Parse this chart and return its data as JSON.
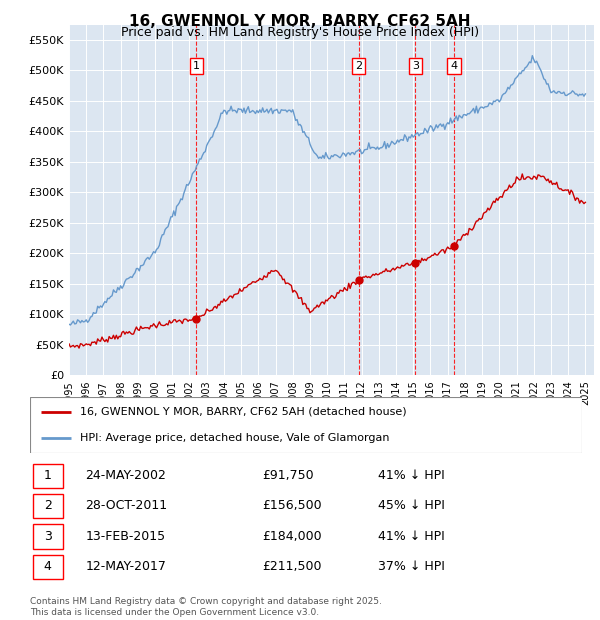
{
  "title": "16, GWENNOL Y MOR, BARRY, CF62 5AH",
  "subtitle": "Price paid vs. HM Land Registry's House Price Index (HPI)",
  "ylabel_ticks": [
    "£0",
    "£50K",
    "£100K",
    "£150K",
    "£200K",
    "£250K",
    "£300K",
    "£350K",
    "£400K",
    "£450K",
    "£500K",
    "£550K"
  ],
  "ylim": [
    0,
    575000
  ],
  "yticks": [
    0,
    50000,
    100000,
    150000,
    200000,
    250000,
    300000,
    350000,
    400000,
    450000,
    500000,
    550000
  ],
  "xlim_start": 1995.0,
  "xlim_end": 2025.5,
  "plot_bg_color": "#dce6f1",
  "red_line_color": "#cc0000",
  "blue_line_color": "#6699cc",
  "transaction_dates": [
    2002.39,
    2011.82,
    2015.12,
    2017.37
  ],
  "transaction_prices": [
    91750,
    156500,
    184000,
    211500
  ],
  "transaction_labels": [
    "1",
    "2",
    "3",
    "4"
  ],
  "transaction_info": [
    {
      "label": "1",
      "date": "24-MAY-2002",
      "price": "£91,750",
      "pct": "41% ↓ HPI"
    },
    {
      "label": "2",
      "date": "28-OCT-2011",
      "price": "£156,500",
      "pct": "45% ↓ HPI"
    },
    {
      "label": "3",
      "date": "13-FEB-2015",
      "price": "£184,000",
      "pct": "41% ↓ HPI"
    },
    {
      "label": "4",
      "date": "12-MAY-2017",
      "price": "£211,500",
      "pct": "37% ↓ HPI"
    }
  ],
  "legend_line1": "16, GWENNOL Y MOR, BARRY, CF62 5AH (detached house)",
  "legend_line2": "HPI: Average price, detached house, Vale of Glamorgan",
  "footer": "Contains HM Land Registry data © Crown copyright and database right 2025.\nThis data is licensed under the Open Government Licence v3.0."
}
